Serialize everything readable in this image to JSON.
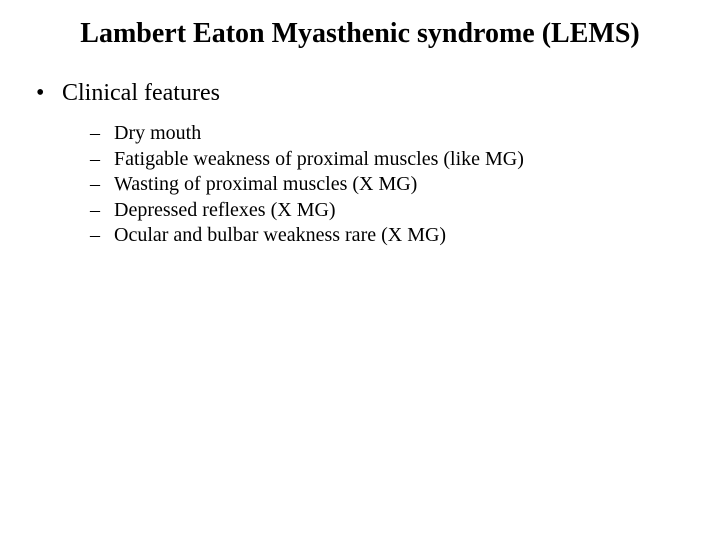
{
  "title": "Lambert Eaton Myasthenic syndrome (LEMS)",
  "bullets": [
    {
      "marker": "•",
      "text": "Clinical features",
      "children": [
        {
          "marker": "–",
          "text": "Dry mouth"
        },
        {
          "marker": "–",
          "text": "Fatigable weakness of proximal muscles (like MG)"
        },
        {
          "marker": "–",
          "text": "Wasting of proximal muscles (X MG)"
        },
        {
          "marker": "–",
          "text": "Depressed reflexes (X MG)"
        },
        {
          "marker": "–",
          "text": "Ocular and bulbar weakness rare (X MG)"
        }
      ]
    }
  ],
  "style": {
    "background_color": "#ffffff",
    "text_color": "#000000",
    "font_family": "Times New Roman",
    "title_fontsize": 28,
    "title_fontweight": "bold",
    "lvl1_fontsize": 24,
    "lvl2_fontsize": 20,
    "slide_width": 720,
    "slide_height": 540
  }
}
